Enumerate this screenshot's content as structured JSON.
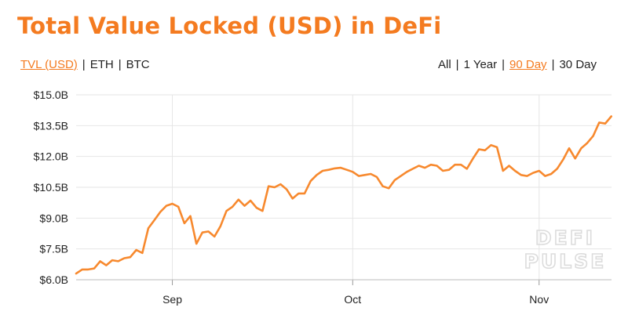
{
  "header": {
    "title": "Total Value Locked (USD) in DeFi"
  },
  "metric_toggle": [
    {
      "label": "TVL (USD)",
      "active": true
    },
    {
      "label": "ETH",
      "active": false
    },
    {
      "label": "BTC",
      "active": false
    }
  ],
  "range_toggle": [
    {
      "label": "All",
      "active": false
    },
    {
      "label": "1 Year",
      "active": false
    },
    {
      "label": "90 Day",
      "active": true
    },
    {
      "label": "30 Day",
      "active": false
    }
  ],
  "separator": "|",
  "watermark": {
    "line1": "DEFI",
    "line2": "PULSE"
  },
  "colors": {
    "accent": "#f47b20",
    "line": "#f7892e",
    "grid": "#e6e6e6"
  },
  "chart_data": {
    "type": "line",
    "title": "Total Value Locked (USD) in DeFi",
    "ylim": [
      6.0,
      15.0
    ],
    "y_ticks": [
      {
        "value": 6.0,
        "label": "$6.0B"
      },
      {
        "value": 7.5,
        "label": "$7.5B"
      },
      {
        "value": 9.0,
        "label": "$9.0B"
      },
      {
        "value": 10.5,
        "label": "$10.5B"
      },
      {
        "value": 12.0,
        "label": "$12.0B"
      },
      {
        "value": 13.5,
        "label": "$13.5B"
      },
      {
        "value": 15.0,
        "label": "$15.0B"
      }
    ],
    "xlim": [
      "2020-08-16",
      "2020-11-12"
    ],
    "x_ticks": [
      {
        "date": "2020-09-01",
        "label": "Sep"
      },
      {
        "date": "2020-10-01",
        "label": "Oct"
      },
      {
        "date": "2020-11-01",
        "label": "Nov"
      }
    ],
    "grid": true,
    "series": [
      {
        "values": [
          [
            "2020-08-16",
            6.3
          ],
          [
            "2020-08-17",
            6.5
          ],
          [
            "2020-08-18",
            6.5
          ],
          [
            "2020-08-19",
            6.55
          ],
          [
            "2020-08-20",
            6.9
          ],
          [
            "2020-08-21",
            6.7
          ],
          [
            "2020-08-22",
            6.95
          ],
          [
            "2020-08-23",
            6.9
          ],
          [
            "2020-08-24",
            7.05
          ],
          [
            "2020-08-25",
            7.1
          ],
          [
            "2020-08-26",
            7.45
          ],
          [
            "2020-08-27",
            7.3
          ],
          [
            "2020-08-28",
            8.5
          ],
          [
            "2020-08-29",
            8.9
          ],
          [
            "2020-08-30",
            9.3
          ],
          [
            "2020-08-31",
            9.6
          ],
          [
            "2020-09-01",
            9.7
          ],
          [
            "2020-09-02",
            9.55
          ],
          [
            "2020-09-03",
            8.75
          ],
          [
            "2020-09-04",
            9.1
          ],
          [
            "2020-09-05",
            7.75
          ],
          [
            "2020-09-06",
            8.3
          ],
          [
            "2020-09-07",
            8.35
          ],
          [
            "2020-09-08",
            8.1
          ],
          [
            "2020-09-09",
            8.6
          ],
          [
            "2020-09-10",
            9.35
          ],
          [
            "2020-09-11",
            9.55
          ],
          [
            "2020-09-12",
            9.9
          ],
          [
            "2020-09-13",
            9.6
          ],
          [
            "2020-09-14",
            9.85
          ],
          [
            "2020-09-15",
            9.5
          ],
          [
            "2020-09-16",
            9.35
          ],
          [
            "2020-09-17",
            10.55
          ],
          [
            "2020-09-18",
            10.5
          ],
          [
            "2020-09-19",
            10.65
          ],
          [
            "2020-09-20",
            10.4
          ],
          [
            "2020-09-21",
            9.95
          ],
          [
            "2020-09-22",
            10.2
          ],
          [
            "2020-09-23",
            10.2
          ],
          [
            "2020-09-24",
            10.8
          ],
          [
            "2020-09-25",
            11.1
          ],
          [
            "2020-09-26",
            11.3
          ],
          [
            "2020-09-27",
            11.35
          ],
          [
            "2020-09-28",
            11.42
          ],
          [
            "2020-09-29",
            11.45
          ],
          [
            "2020-09-30",
            11.35
          ],
          [
            "2020-10-01",
            11.25
          ],
          [
            "2020-10-02",
            11.05
          ],
          [
            "2020-10-03",
            11.1
          ],
          [
            "2020-10-04",
            11.15
          ],
          [
            "2020-10-05",
            11.0
          ],
          [
            "2020-10-06",
            10.55
          ],
          [
            "2020-10-07",
            10.45
          ],
          [
            "2020-10-08",
            10.85
          ],
          [
            "2020-10-09",
            11.05
          ],
          [
            "2020-10-10",
            11.25
          ],
          [
            "2020-10-11",
            11.4
          ],
          [
            "2020-10-12",
            11.55
          ],
          [
            "2020-10-13",
            11.45
          ],
          [
            "2020-10-14",
            11.6
          ],
          [
            "2020-10-15",
            11.55
          ],
          [
            "2020-10-16",
            11.3
          ],
          [
            "2020-10-17",
            11.35
          ],
          [
            "2020-10-18",
            11.6
          ],
          [
            "2020-10-19",
            11.6
          ],
          [
            "2020-10-20",
            11.4
          ],
          [
            "2020-10-21",
            11.9
          ],
          [
            "2020-10-22",
            12.35
          ],
          [
            "2020-10-23",
            12.3
          ],
          [
            "2020-10-24",
            12.55
          ],
          [
            "2020-10-25",
            12.45
          ],
          [
            "2020-10-26",
            11.3
          ],
          [
            "2020-10-27",
            11.55
          ],
          [
            "2020-10-28",
            11.3
          ],
          [
            "2020-10-29",
            11.1
          ],
          [
            "2020-10-30",
            11.05
          ],
          [
            "2020-10-31",
            11.2
          ],
          [
            "2020-11-01",
            11.3
          ],
          [
            "2020-11-02",
            11.05
          ],
          [
            "2020-11-03",
            11.15
          ],
          [
            "2020-11-04",
            11.4
          ],
          [
            "2020-11-05",
            11.85
          ],
          [
            "2020-11-06",
            12.4
          ],
          [
            "2020-11-07",
            11.9
          ],
          [
            "2020-11-08",
            12.4
          ],
          [
            "2020-11-09",
            12.65
          ],
          [
            "2020-11-10",
            13.0
          ],
          [
            "2020-11-11",
            13.65
          ],
          [
            "2020-11-12",
            13.6
          ],
          [
            "2020-11-13",
            13.95
          ]
        ]
      }
    ]
  }
}
